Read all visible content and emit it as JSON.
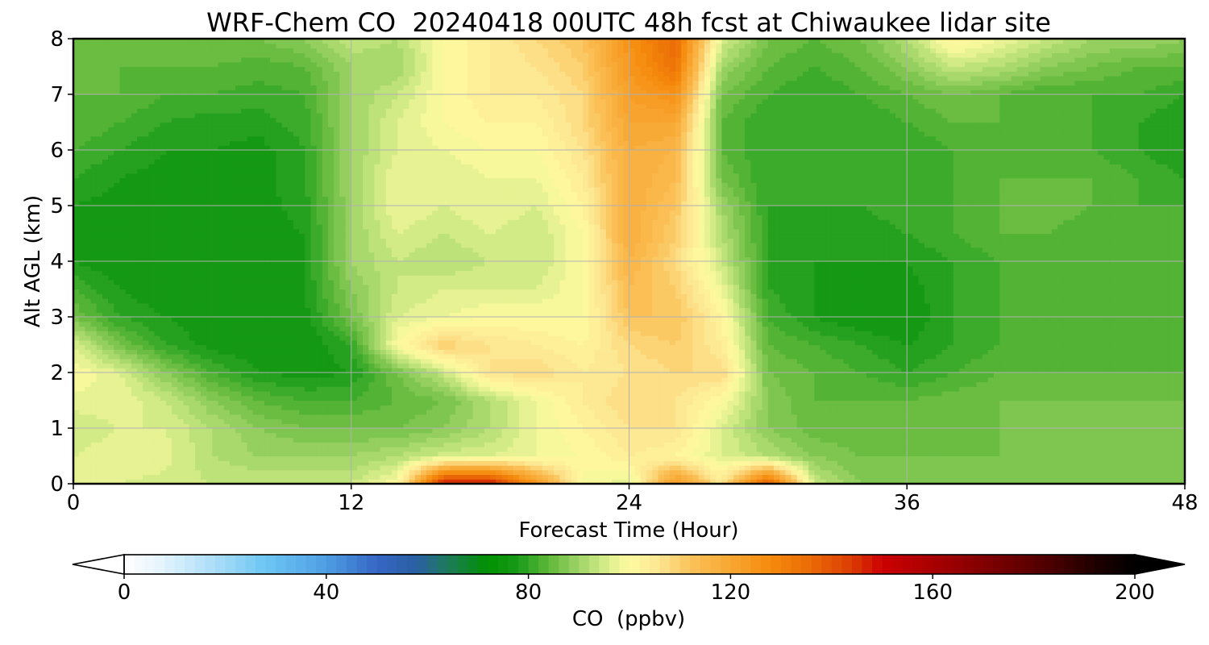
{
  "chart_data": {
    "type": "heatmap",
    "title": "WRF-Chem CO  20240418 00UTC 48h fcst at Chiwaukee lidar site",
    "xlabel": "Forecast Time (Hour)",
    "ylabel": "Alt AGL (km)",
    "xlim": [
      0,
      48
    ],
    "ylim": [
      0,
      8
    ],
    "x_ticks": [
      0,
      12,
      24,
      36,
      48
    ],
    "y_ticks": [
      0,
      1,
      2,
      3,
      4,
      5,
      6,
      7,
      8
    ],
    "grid": true,
    "x": [
      0,
      2,
      4,
      6,
      8,
      10,
      12,
      14,
      16,
      18,
      20,
      22,
      24,
      26,
      28,
      30,
      32,
      34,
      36,
      38,
      40,
      42,
      44,
      46,
      48
    ],
    "y": [
      0,
      0.5,
      1,
      1.5,
      2,
      2.5,
      3,
      3.5,
      4,
      4.5,
      5,
      5.5,
      6,
      6.5,
      7,
      7.5,
      8
    ],
    "z": [
      [
        96,
        96,
        95,
        94,
        94,
        94,
        94,
        100,
        150,
        150,
        125,
        100,
        96,
        125,
        105,
        140,
        94,
        88,
        88,
        88,
        88,
        88,
        88,
        88,
        88
      ],
      [
        96,
        98,
        97,
        92,
        90,
        90,
        90,
        92,
        95,
        96,
        98,
        100,
        104,
        102,
        96,
        92,
        88,
        86,
        86,
        86,
        86,
        86,
        86,
        86,
        86
      ],
      [
        94,
        96,
        96,
        92,
        88,
        86,
        86,
        86,
        88,
        92,
        98,
        102,
        106,
        106,
        96,
        88,
        85,
        84,
        84,
        85,
        86,
        86,
        86,
        86,
        86
      ],
      [
        97,
        98,
        94,
        88,
        84,
        82,
        82,
        84,
        86,
        92,
        98,
        104,
        108,
        106,
        100,
        88,
        84,
        84,
        84,
        85,
        86,
        86,
        86,
        86,
        86
      ],
      [
        100,
        96,
        88,
        82,
        78,
        77,
        78,
        86,
        94,
        106,
        108,
        104,
        106,
        108,
        108,
        86,
        84,
        82,
        80,
        82,
        84,
        84,
        84,
        84,
        84
      ],
      [
        96,
        86,
        80,
        77,
        76,
        76,
        80,
        100,
        110,
        106,
        104,
        102,
        108,
        110,
        104,
        84,
        82,
        80,
        78,
        80,
        82,
        82,
        82,
        82,
        82
      ],
      [
        86,
        80,
        78,
        76,
        76,
        77,
        86,
        96,
        98,
        100,
        100,
        100,
        112,
        112,
        102,
        82,
        78,
        76,
        76,
        80,
        82,
        82,
        82,
        82,
        82
      ],
      [
        82,
        78,
        76,
        76,
        77,
        78,
        88,
        94,
        96,
        96,
        96,
        100,
        114,
        110,
        98,
        80,
        78,
        76,
        77,
        80,
        82,
        82,
        82,
        82,
        82
      ],
      [
        78,
        76,
        76,
        76,
        77,
        78,
        90,
        94,
        92,
        94,
        94,
        100,
        116,
        108,
        94,
        80,
        78,
        78,
        78,
        80,
        82,
        82,
        82,
        82,
        82
      ],
      [
        78,
        76,
        76,
        77,
        77,
        78,
        90,
        96,
        94,
        96,
        94,
        100,
        118,
        110,
        92,
        80,
        79,
        79,
        80,
        82,
        84,
        84,
        82,
        82,
        82
      ],
      [
        78,
        77,
        77,
        77,
        77,
        79,
        90,
        98,
        96,
        98,
        96,
        102,
        118,
        112,
        90,
        80,
        80,
        80,
        81,
        82,
        84,
        86,
        84,
        82,
        82
      ],
      [
        80,
        78,
        77,
        77,
        77,
        80,
        90,
        98,
        96,
        98,
        98,
        104,
        118,
        114,
        86,
        80,
        80,
        80,
        82,
        82,
        84,
        84,
        84,
        82,
        80
      ],
      [
        82,
        80,
        78,
        78,
        77,
        80,
        90,
        96,
        98,
        100,
        100,
        106,
        118,
        116,
        84,
        80,
        80,
        80,
        80,
        82,
        82,
        82,
        82,
        80,
        78
      ],
      [
        84,
        82,
        80,
        79,
        79,
        81,
        90,
        96,
        100,
        102,
        102,
        108,
        120,
        120,
        84,
        80,
        80,
        80,
        82,
        84,
        84,
        82,
        82,
        80,
        78
      ],
      [
        84,
        84,
        82,
        82,
        81,
        82,
        90,
        94,
        100,
        104,
        104,
        108,
        122,
        126,
        86,
        82,
        80,
        82,
        84,
        86,
        84,
        82,
        82,
        82,
        80
      ],
      [
        84,
        84,
        84,
        84,
        83,
        84,
        90,
        90,
        100,
        104,
        106,
        110,
        124,
        134,
        90,
        84,
        82,
        84,
        88,
        94,
        92,
        88,
        86,
        84,
        84
      ],
      [
        86,
        86,
        86,
        86,
        86,
        88,
        94,
        92,
        100,
        104,
        108,
        112,
        126,
        136,
        96,
        86,
        84,
        86,
        92,
        102,
        98,
        94,
        90,
        90,
        88
      ]
    ],
    "colorbar": {
      "label": "CO  (ppbv)",
      "min": 0,
      "max": 200,
      "ticks": [
        0,
        40,
        80,
        120,
        160,
        200
      ],
      "extend": "both",
      "step": 2
    }
  }
}
